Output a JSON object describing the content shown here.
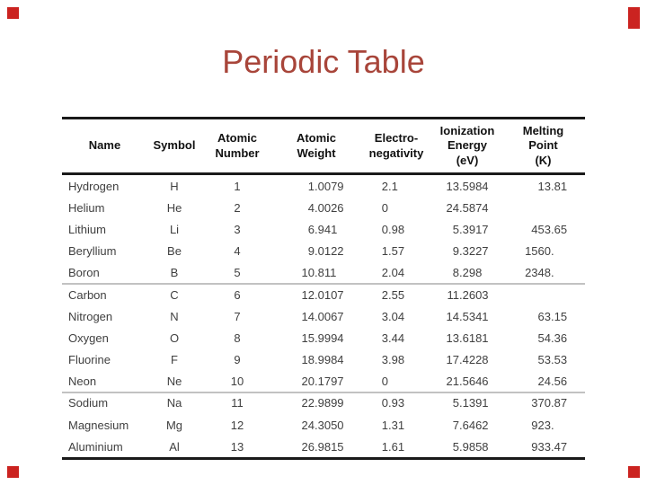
{
  "slide": {
    "title": "Periodic Table"
  },
  "colors": {
    "background": "#ffffff",
    "title_text": "#a8453a",
    "corner_marker": "#cb2320",
    "header_text": "#111111",
    "body_text": "#404040",
    "rule_dark": "#1a1a1a",
    "rule_light": "#c2c2c2"
  },
  "table": {
    "columns": [
      {
        "id": "name",
        "label": "Name",
        "label_lines": [
          "Name"
        ]
      },
      {
        "id": "symbol",
        "label": "Symbol",
        "label_lines": [
          "Symbol"
        ]
      },
      {
        "id": "atomic_number",
        "label": "Atomic Number",
        "label_lines": [
          "Atomic",
          "Number"
        ]
      },
      {
        "id": "atomic_weight",
        "label": "Atomic Weight",
        "label_lines": [
          "Atomic",
          "Weight"
        ]
      },
      {
        "id": "electronegativity",
        "label": "Electro-negativity",
        "label_lines": [
          "Electro-",
          "negativity"
        ]
      },
      {
        "id": "ionization_energy",
        "label": "Ionization Energy (eV)",
        "label_lines": [
          "Ionization",
          "Energy",
          "(eV)"
        ]
      },
      {
        "id": "melting_point",
        "label": "Melting Point (K)",
        "label_lines": [
          "Melting",
          "Point",
          "(K)"
        ]
      }
    ],
    "rows": [
      {
        "name": "Hydrogen",
        "symbol": "H",
        "atomic_number": "1",
        "atomic_weight": "1.0079",
        "electronegativity": "2.1",
        "ionization_energy": "13.5984",
        "melting_point": "13.81"
      },
      {
        "name": "Helium",
        "symbol": "He",
        "atomic_number": "2",
        "atomic_weight": "4.0026",
        "electronegativity": "0",
        "ionization_energy": "24.5874",
        "melting_point": ""
      },
      {
        "name": "Lithium",
        "symbol": "Li",
        "atomic_number": "3",
        "atomic_weight": "6.941",
        "electronegativity": "0.98",
        "ionization_energy": "5.3917",
        "melting_point": "453.65"
      },
      {
        "name": "Beryllium",
        "symbol": "Be",
        "atomic_number": "4",
        "atomic_weight": "9.0122",
        "electronegativity": "1.57",
        "ionization_energy": "9.3227",
        "melting_point": "1560."
      },
      {
        "name": "Boron",
        "symbol": "B",
        "atomic_number": "5",
        "atomic_weight": "10.811",
        "electronegativity": "2.04",
        "ionization_energy": "8.298",
        "melting_point": "2348."
      },
      {
        "name": "Carbon",
        "symbol": "C",
        "atomic_number": "6",
        "atomic_weight": "12.0107",
        "electronegativity": "2.55",
        "ionization_energy": "11.2603",
        "melting_point": ""
      },
      {
        "name": "Nitrogen",
        "symbol": "N",
        "atomic_number": "7",
        "atomic_weight": "14.0067",
        "electronegativity": "3.04",
        "ionization_energy": "14.5341",
        "melting_point": "63.15"
      },
      {
        "name": "Oxygen",
        "symbol": "O",
        "atomic_number": "8",
        "atomic_weight": "15.9994",
        "electronegativity": "3.44",
        "ionization_energy": "13.6181",
        "melting_point": "54.36"
      },
      {
        "name": "Fluorine",
        "symbol": "F",
        "atomic_number": "9",
        "atomic_weight": "18.9984",
        "electronegativity": "3.98",
        "ionization_energy": "17.4228",
        "melting_point": "53.53"
      },
      {
        "name": "Neon",
        "symbol": "Ne",
        "atomic_number": "10",
        "atomic_weight": "20.1797",
        "electronegativity": "0",
        "ionization_energy": "21.5646",
        "melting_point": "24.56"
      },
      {
        "name": "Sodium",
        "symbol": "Na",
        "atomic_number": "11",
        "atomic_weight": "22.9899",
        "electronegativity": "0.93",
        "ionization_energy": "5.1391",
        "melting_point": "370.87"
      },
      {
        "name": "Magnesium",
        "symbol": "Mg",
        "atomic_number": "12",
        "atomic_weight": "24.3050",
        "electronegativity": "1.31",
        "ionization_energy": "7.6462",
        "melting_point": "923."
      },
      {
        "name": "Aluminium",
        "symbol": "Al",
        "atomic_number": "13",
        "atomic_weight": "26.9815",
        "electronegativity": "1.61",
        "ionization_energy": "5.9858",
        "melting_point": "933.47"
      }
    ],
    "period_break_after_rows": [
      4,
      9
    ]
  }
}
